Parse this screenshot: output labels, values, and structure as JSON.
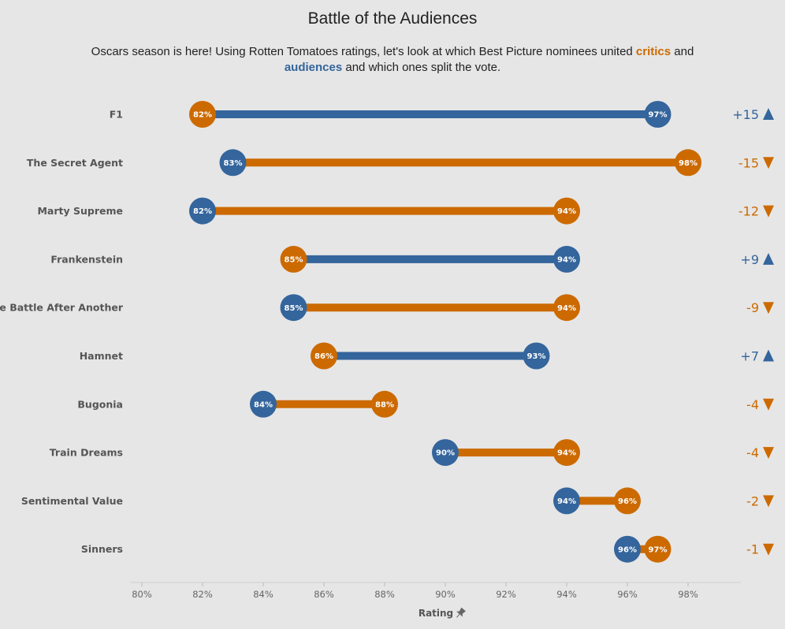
{
  "header": {
    "title": "Battle of the Audiences",
    "subtitle_part1": "Oscars season is here! Using Rotten Tomatoes ratings, let's look at which Best Picture nominees united ",
    "subtitle_critics": "critics",
    "subtitle_and": " and",
    "subtitle_audiences": "audiences",
    "subtitle_part2": " and which ones split the vote."
  },
  "colors": {
    "critics": "#cc6a00",
    "audiences": "#34659c",
    "background": "#e6e6e6"
  },
  "chart_data": {
    "type": "dumbbell",
    "xlabel": "Rating",
    "xlim": [
      79.5,
      99.5
    ],
    "xticks": [
      80,
      82,
      84,
      86,
      88,
      90,
      92,
      94,
      96,
      98
    ],
    "tick_suffix": "%",
    "series": [
      {
        "name": "critics",
        "color": "#cc6a00"
      },
      {
        "name": "audiences",
        "color": "#34659c"
      }
    ],
    "rows": [
      {
        "film": "F1",
        "critics": 82,
        "audiences": 97,
        "diff_label": "+15",
        "direction": "up"
      },
      {
        "film": "The Secret Agent",
        "critics": 98,
        "audiences": 83,
        "diff_label": "-15",
        "direction": "down"
      },
      {
        "film": "Marty Supreme",
        "critics": 94,
        "audiences": 82,
        "diff_label": "-12",
        "direction": "down"
      },
      {
        "film": "Frankenstein",
        "critics": 85,
        "audiences": 94,
        "diff_label": "+9",
        "direction": "up"
      },
      {
        "film": "One Battle After Another",
        "critics": 94,
        "audiences": 85,
        "diff_label": "-9",
        "direction": "down"
      },
      {
        "film": "Hamnet",
        "critics": 86,
        "audiences": 93,
        "diff_label": "+7",
        "direction": "up"
      },
      {
        "film": "Bugonia",
        "critics": 88,
        "audiences": 84,
        "diff_label": "-4",
        "direction": "down"
      },
      {
        "film": "Train Dreams",
        "critics": 94,
        "audiences": 90,
        "diff_label": "-4",
        "direction": "down"
      },
      {
        "film": "Sentimental Value",
        "critics": 96,
        "audiences": 94,
        "diff_label": "-2",
        "direction": "down"
      },
      {
        "film": "Sinners",
        "critics": 97,
        "audiences": 96,
        "diff_label": "-1",
        "direction": "down"
      }
    ]
  }
}
